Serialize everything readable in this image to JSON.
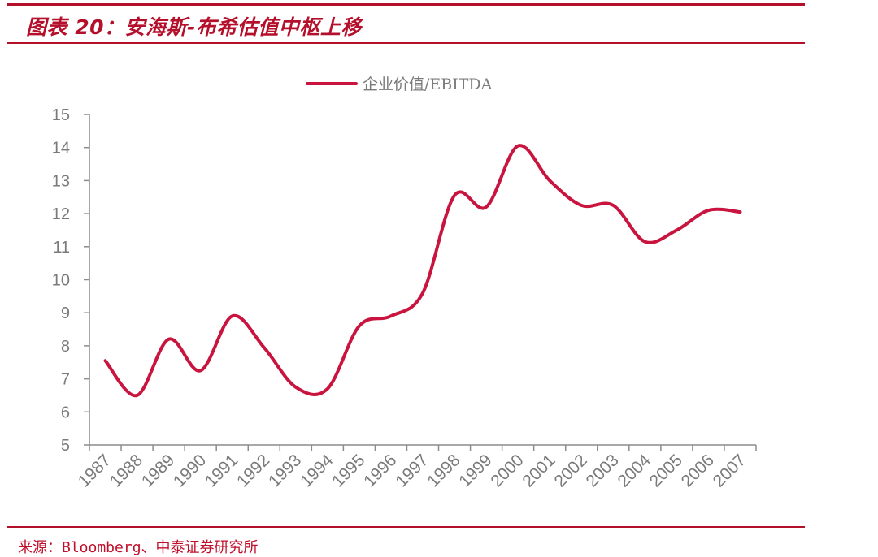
{
  "figure": {
    "title": "图表 20：安海斯-布希估值中枢上移",
    "source": "来源：Bloomberg、中泰证券研究所"
  },
  "colors": {
    "accent": "#b5102b",
    "series": "#c8143e",
    "axis": "#8c8c8c",
    "tick_text": "#7a7a7a"
  },
  "chart_data": {
    "type": "line",
    "title": "",
    "xlabel": "",
    "ylabel": "",
    "ylim": [
      5,
      15
    ],
    "yticks": [
      "5",
      "6",
      "7",
      "8",
      "9",
      "10",
      "11",
      "12",
      "13",
      "14",
      "15"
    ],
    "categories": [
      "1987",
      "1988",
      "1989",
      "1990",
      "1991",
      "1992",
      "1993",
      "1994",
      "1995",
      "1996",
      "1997",
      "1998",
      "1999",
      "2000",
      "2001",
      "2002",
      "2003",
      "2004",
      "2005",
      "2006",
      "2007"
    ],
    "grid": false,
    "legend_position": "top-center",
    "series": [
      {
        "name": "企业价值/EBITDA",
        "values": [
          7.55,
          6.5,
          8.2,
          7.25,
          8.9,
          7.95,
          6.75,
          6.7,
          8.6,
          8.9,
          9.6,
          12.55,
          12.2,
          14.05,
          13.0,
          12.25,
          12.25,
          11.15,
          11.5,
          12.1,
          12.05
        ]
      }
    ]
  }
}
